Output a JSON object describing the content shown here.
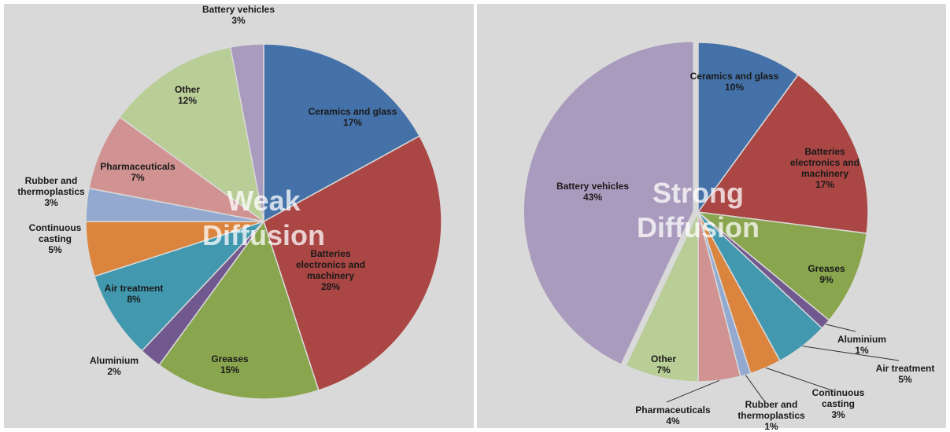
{
  "chart_data": [
    {
      "type": "pie",
      "title": "Weak Diffusion",
      "categories": [
        "Ceramics and glass",
        "Batteries electronics and machinery",
        "Greases",
        "Aluminium",
        "Air treatment",
        "Continuous casting",
        "Rubber and thermoplastics",
        "Pharmaceuticals",
        "Other",
        "Battery vehicles"
      ],
      "values": [
        17,
        28,
        15,
        2,
        8,
        5,
        3,
        7,
        12,
        3
      ],
      "value_labels": [
        "17%",
        "28%",
        "15%",
        "2%",
        "8%",
        "5%",
        "3%",
        "7%",
        "12%",
        "3%"
      ],
      "colors": [
        "#4471a8",
        "#aa4643",
        "#89a54e",
        "#71588f",
        "#4198af",
        "#db843d",
        "#93a9cf",
        "#d19392",
        "#b9cd96",
        "#a99bbd"
      ]
    },
    {
      "type": "pie",
      "title": "Strong Diffusion",
      "categories": [
        "Ceramics and glass",
        "Batteries electronics and machinery",
        "Greases",
        "Aluminium",
        "Air treatment",
        "Continuous casting",
        "Rubber and thermoplastics",
        "Pharmaceuticals",
        "Other",
        "Battery vehicles"
      ],
      "values": [
        10,
        17,
        9,
        1,
        5,
        3,
        1,
        4,
        7,
        43
      ],
      "value_labels": [
        "10%",
        "17%",
        "9%",
        "1%",
        "5%",
        "3%",
        "1%",
        "4%",
        "7%",
        "43%"
      ],
      "colors": [
        "#4471a8",
        "#aa4643",
        "#89a54e",
        "#71588f",
        "#4198af",
        "#db843d",
        "#93a9cf",
        "#d19392",
        "#b9cd96",
        "#a99bbd"
      ]
    }
  ]
}
